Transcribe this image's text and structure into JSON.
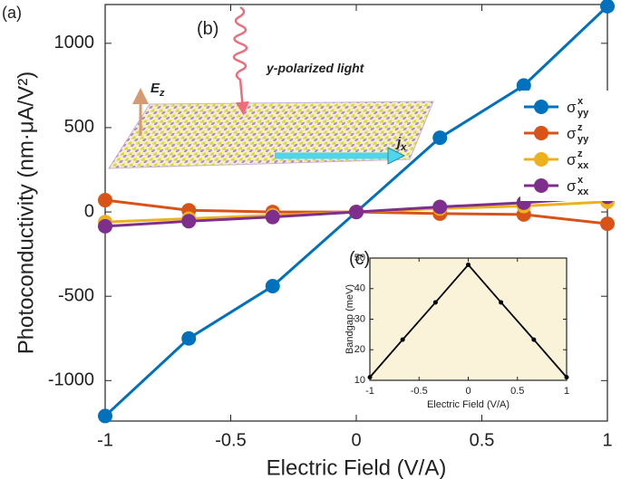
{
  "chart_data": [
    {
      "type": "line",
      "panel_label": "(a)",
      "x_label": "Electric Field (V/A)",
      "y_label": "Photoconductivity (nm·μA/V²)",
      "x": [
        -1,
        -0.667,
        -0.333,
        0,
        0.333,
        0.667,
        1
      ],
      "xlim": [
        -1,
        1
      ],
      "ylim": [
        -1240,
        1230
      ],
      "xticks": [
        -1,
        -0.5,
        0,
        0.5,
        1
      ],
      "yticks": [
        -1000,
        -500,
        0,
        500,
        1000
      ],
      "legend": "right",
      "series": [
        {
          "name": "σ",
          "sub": "yy",
          "sup": "x",
          "color": "#0072bd",
          "values": [
            -1210,
            -750,
            -440,
            0,
            440,
            750,
            1220
          ]
        },
        {
          "name": "σ",
          "sub": "yy",
          "sup": "z",
          "color": "#d95319",
          "values": [
            70,
            10,
            0,
            0,
            -10,
            -15,
            -70
          ]
        },
        {
          "name": "σ",
          "sub": "xx",
          "sup": "z",
          "color": "#edb120",
          "values": [
            -60,
            -40,
            -20,
            0,
            20,
            35,
            60
          ]
        },
        {
          "name": "σ",
          "sub": "xx",
          "sup": "x",
          "color": "#7e2f8e",
          "values": [
            -85,
            -55,
            -30,
            0,
            30,
            55,
            90
          ]
        }
      ]
    },
    {
      "type": "line",
      "panel_label": "(c)",
      "x_label": "Electric Field (V/A)",
      "y_label": "Bandgap (meV)",
      "x": [
        -1,
        -0.667,
        -0.333,
        0,
        0.333,
        0.667,
        1
      ],
      "xlim": [
        -1,
        1
      ],
      "ylim": [
        10,
        50
      ],
      "xticks": [
        -1,
        -0.5,
        0,
        0.5,
        1
      ],
      "yticks": [
        10,
        20,
        30,
        40,
        50
      ],
      "background": "#fbf3d9",
      "series": [
        {
          "color": "#000000",
          "values": [
            11,
            23.3,
            35.5,
            47.8,
            35.5,
            23.3,
            11
          ]
        }
      ]
    }
  ],
  "illustration": {
    "panel_label": "(b)",
    "light": "y-polarized light",
    "field": "E",
    "field_sub": "z",
    "current": "j",
    "current_sub": "x"
  }
}
